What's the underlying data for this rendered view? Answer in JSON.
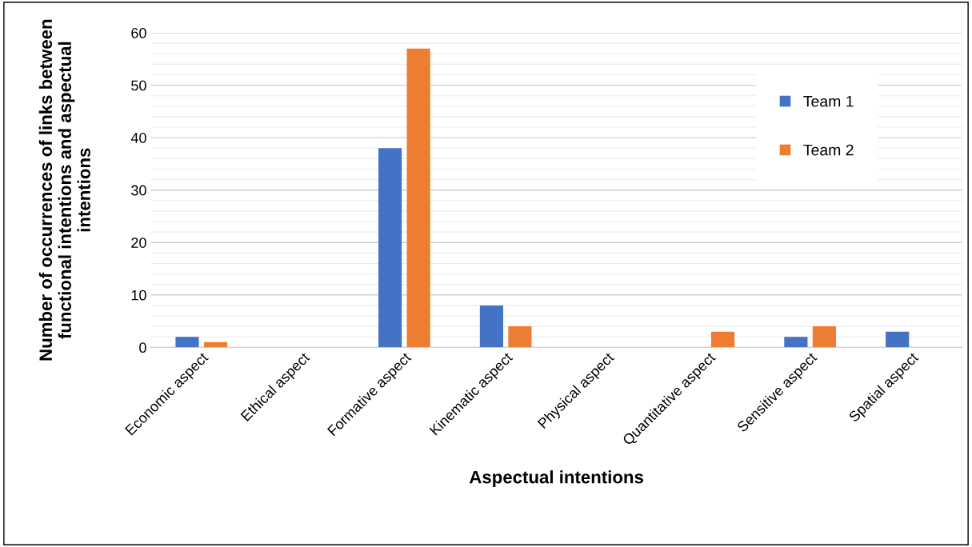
{
  "chart_data": {
    "type": "bar",
    "xlabel": "Aspectual intentions",
    "ylabel": "Number of occurrences of links between functional intentions and aspectual intentions",
    "categories": [
      "Economic aspect",
      "Ethical aspect",
      "Formative aspect",
      "Kinematic aspect",
      "Physical aspect",
      "Quantitative aspect",
      "Sensitive aspect",
      "Spatial aspect"
    ],
    "series": [
      {
        "name": "Team 1",
        "color": "#4472c4",
        "values": [
          2,
          0,
          38,
          8,
          0,
          0,
          2,
          3
        ]
      },
      {
        "name": "Team 2",
        "color": "#ed7d31",
        "values": [
          1,
          0,
          57,
          4,
          0,
          3,
          4,
          0
        ]
      }
    ],
    "ylim": [
      0,
      60
    ],
    "yticks": [
      0,
      10,
      20,
      30,
      40,
      50,
      60
    ],
    "grid": "y",
    "legend": "top right"
  }
}
